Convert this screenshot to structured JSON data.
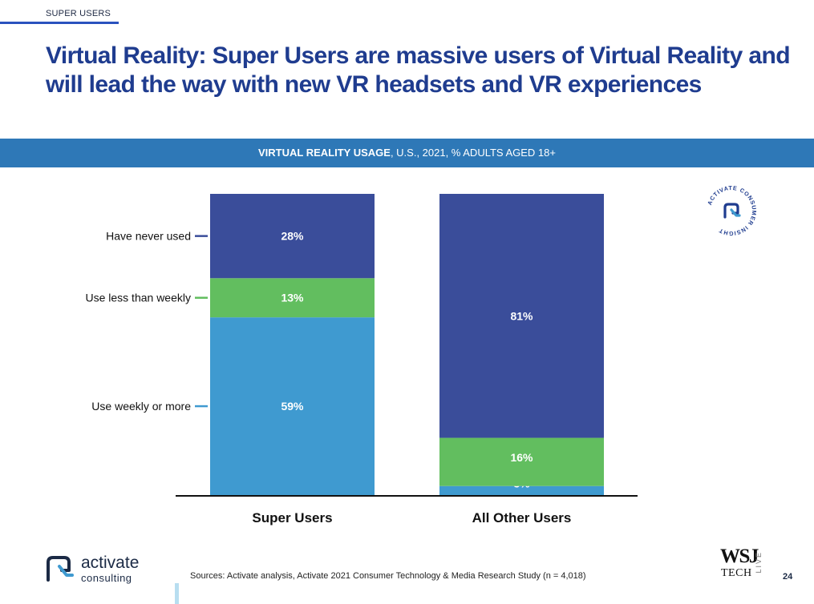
{
  "header": {
    "section_tag": "SUPER USERS",
    "title_line1": "Virtual Reality: Super Users are massive users of Virtual Reality and",
    "title_line2": "will lead the way with new VR headsets and VR experiences"
  },
  "banner": {
    "bold": "VIRTUAL REALITY USAGE",
    "rest": ", U.S., 2021, % ADULTS AGED 18+"
  },
  "badge": {
    "text": "ACTIVATE CONSUMER INSIGHT",
    "icon": "activate-logo-icon"
  },
  "colors": {
    "never": "#3a4d9a",
    "less_weekly": "#62be5f",
    "weekly": "#3f9ad0",
    "banner": "#2e78b7",
    "title": "#1f3c8f"
  },
  "chart_data": {
    "type": "bar",
    "stacked": true,
    "title": "VIRTUAL REALITY USAGE, U.S., 2021, % ADULTS AGED 18+",
    "categories": [
      "Super Users",
      "All Other Users"
    ],
    "series": [
      {
        "name": "Use weekly or more",
        "values": [
          59,
          3
        ],
        "labels": [
          "59%",
          "3%"
        ],
        "color": "#3f9ad0"
      },
      {
        "name": "Use less than weekly",
        "values": [
          13,
          16
        ],
        "labels": [
          "13%",
          "16%"
        ],
        "color": "#62be5f"
      },
      {
        "name": "Have never used",
        "values": [
          28,
          81
        ],
        "labels": [
          "28%",
          "81%"
        ],
        "color": "#3a4d9a"
      }
    ],
    "ylim": [
      0,
      100
    ],
    "legend_placement": "left",
    "grid": false
  },
  "footer": {
    "logo_main": "activate",
    "logo_sub": "consulting",
    "source": "Sources: Activate analysis, Activate 2021 Consumer Technology & Media Research Study (n = 4,018)",
    "wsj_main": "WSJ",
    "wsj_sub": "TECH",
    "wsj_side": "LIVE",
    "page_number": "24"
  }
}
